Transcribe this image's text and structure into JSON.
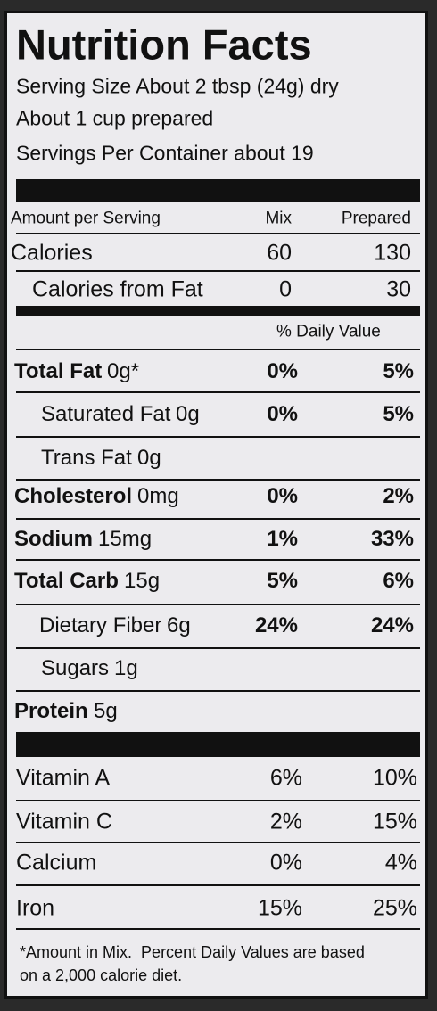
{
  "header": {
    "title": "Nutrition Facts",
    "serving_lines": [
      "Serving Size About 2 tbsp (24g) dry",
      "About 1 cup prepared",
      "Servings Per Container about 19"
    ]
  },
  "columns": {
    "amount_label": "Amount per Serving",
    "mix": "Mix",
    "prepared": "Prepared"
  },
  "calories": [
    {
      "label": "Calories",
      "mix": "60",
      "prepared": "130"
    },
    {
      "label": "Calories from Fat",
      "mix": "0",
      "prepared": "30"
    }
  ],
  "daily_value_label": "% Daily Value",
  "nutrients": [
    {
      "label": "Total Fat",
      "amount": "0g*",
      "mix": "0%",
      "prepared": "5%"
    },
    {
      "label": "Saturated Fat",
      "amount": "0g",
      "mix": "0%",
      "prepared": "5%"
    },
    {
      "label": "Trans Fat",
      "amount": "0g"
    },
    {
      "label": "Cholesterol",
      "amount": "0mg",
      "mix": "0%",
      "prepared": "2%"
    },
    {
      "label": "Sodium",
      "amount": "15mg",
      "mix": "1%",
      "prepared": "33%"
    },
    {
      "label": "Total Carb",
      "amount": "15g",
      "mix": "5%",
      "prepared": "6%"
    },
    {
      "label": "Dietary Fiber",
      "amount": "6g",
      "mix": "24%",
      "prepared": "24%"
    },
    {
      "label": "Sugars",
      "amount": "1g"
    },
    {
      "label": "Protein",
      "amount": "5g"
    }
  ],
  "vitamins": [
    {
      "label": "Vitamin A",
      "mix": "6%",
      "prepared": "10%"
    },
    {
      "label": "Vitamin C",
      "mix": "2%",
      "prepared": "15%"
    },
    {
      "label": "Calcium",
      "mix": "0%",
      "prepared": "4%"
    },
    {
      "label": "Iron",
      "mix": "15%",
      "prepared": "25%"
    }
  ],
  "footnote": [
    "*Amount in Mix.  Percent Daily Values are based",
    "on a 2,000 calorie diet."
  ]
}
